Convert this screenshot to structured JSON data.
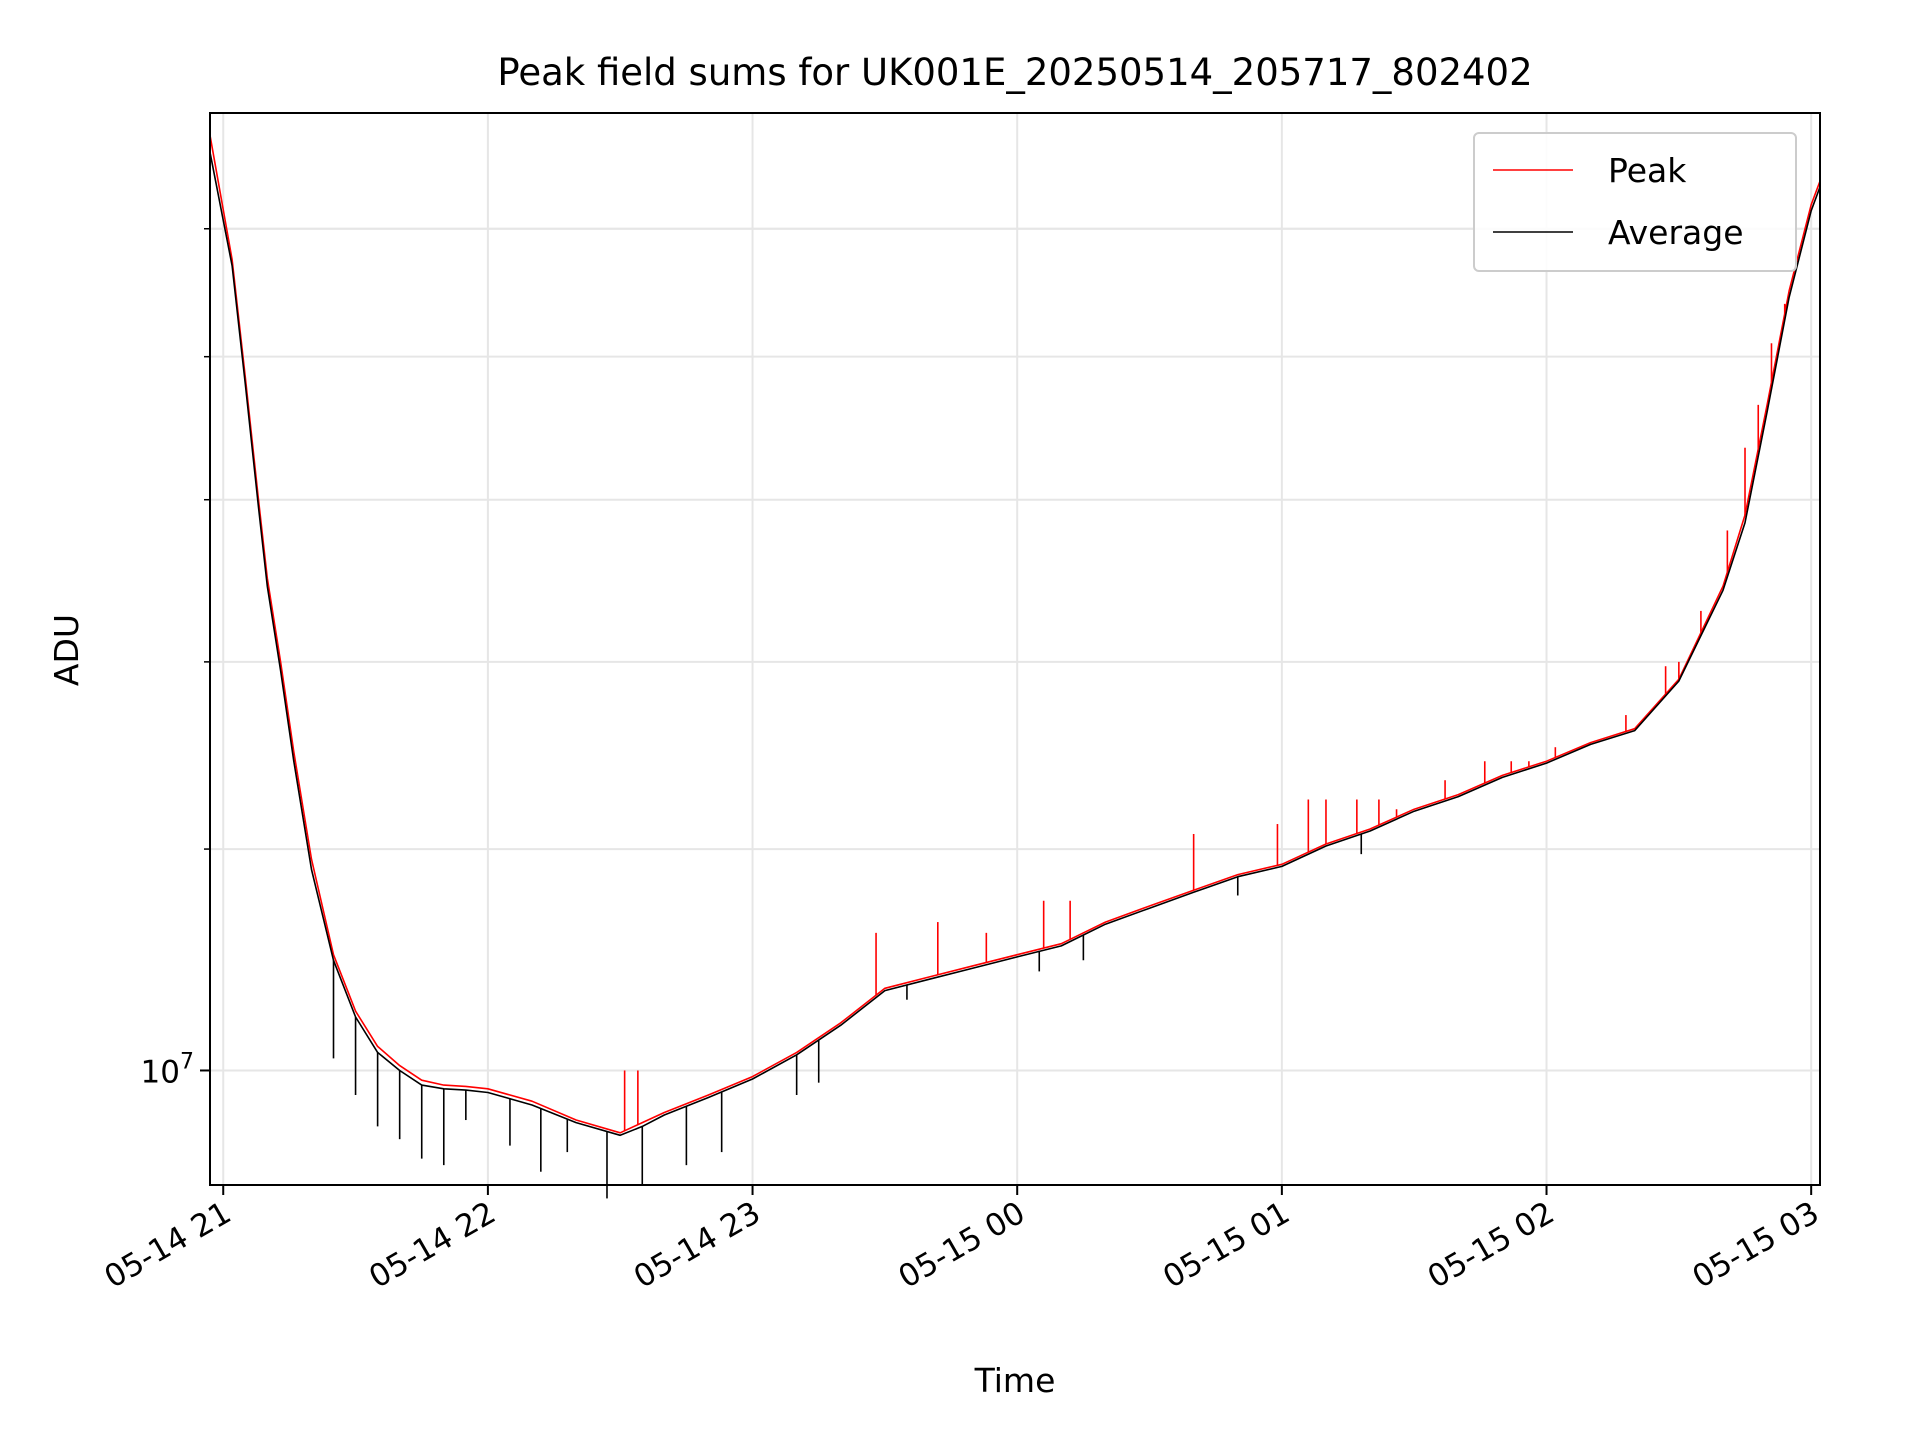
{
  "chart_data": {
    "type": "line",
    "title": "Peak field sums for UK001E_20250514_205717_802402",
    "xlabel": "Time",
    "ylabel": "ADU",
    "x_unit": "time",
    "y_scale": "log",
    "grid": true,
    "legend_position": "upper right",
    "xlim": [
      "2025-05-14 20:57",
      "2025-05-15 03:02"
    ],
    "ylim": [
      9100000,
      22000000
    ],
    "x_ticks": [
      {
        "t": "2025-05-14 21:00",
        "label": "05-14 21"
      },
      {
        "t": "2025-05-14 22:00",
        "label": "05-14 22"
      },
      {
        "t": "2025-05-14 23:00",
        "label": "05-14 23"
      },
      {
        "t": "2025-05-15 00:00",
        "label": "05-15 00"
      },
      {
        "t": "2025-05-15 01:00",
        "label": "05-15 01"
      },
      {
        "t": "2025-05-15 02:00",
        "label": "05-15 02"
      },
      {
        "t": "2025-05-15 03:00",
        "label": "05-15 03"
      }
    ],
    "y_major_ticks": [
      {
        "value": 10000000,
        "label_base": "10",
        "label_exp": "7"
      }
    ],
    "y_minor_ticks": [
      9000000,
      20000000,
      30000000
    ],
    "series": [
      {
        "name": "Peak",
        "color": "#ff0000",
        "x": [
          "2025-05-14 20:57",
          "2025-05-14 21:02",
          "2025-05-14 21:05",
          "2025-05-14 21:08",
          "2025-05-14 21:10",
          "2025-05-14 21:13",
          "2025-05-14 21:16",
          "2025-05-14 21:20",
          "2025-05-14 21:25",
          "2025-05-14 21:30",
          "2025-05-14 21:35",
          "2025-05-14 21:40",
          "2025-05-14 21:45",
          "2025-05-14 21:50",
          "2025-05-14 21:55",
          "2025-05-14 22:00",
          "2025-05-14 22:10",
          "2025-05-14 22:20",
          "2025-05-14 22:30",
          "2025-05-14 22:35",
          "2025-05-14 22:40",
          "2025-05-14 22:50",
          "2025-05-14 23:00",
          "2025-05-14 23:10",
          "2025-05-14 23:20",
          "2025-05-14 23:30",
          "2025-05-14 23:40",
          "2025-05-14 23:50",
          "2025-05-15 00:00",
          "2025-05-15 00:10",
          "2025-05-15 00:20",
          "2025-05-15 00:30",
          "2025-05-15 00:40",
          "2025-05-15 00:50",
          "2025-05-15 01:00",
          "2025-05-15 01:10",
          "2025-05-15 01:20",
          "2025-05-15 01:30",
          "2025-05-15 01:40",
          "2025-05-15 01:50",
          "2025-05-15 02:00",
          "2025-05-15 02:10",
          "2025-05-15 02:20",
          "2025-05-15 02:30",
          "2025-05-15 02:40",
          "2025-05-15 02:45",
          "2025-05-15 02:50",
          "2025-05-15 02:55",
          "2025-05-15 03:00",
          "2025-05-15 03:02"
        ],
        "values": [
          21600000,
          19500000,
          17700000,
          16000000,
          15000000,
          14000000,
          13000000,
          11900000,
          11000000,
          10500000,
          10200000,
          10040000,
          9920000,
          9880000,
          9870000,
          9850000,
          9750000,
          9600000,
          9500000,
          9580000,
          9660000,
          9800000,
          9950000,
          10150000,
          10400000,
          10700000,
          10800000,
          10900000,
          11000000,
          11100000,
          11300000,
          11450000,
          11600000,
          11750000,
          11850000,
          12050000,
          12200000,
          12400000,
          12550000,
          12750000,
          12900000,
          13100000,
          13250000,
          13800000,
          14900000,
          15800000,
          17300000,
          19000000,
          20400000,
          20800000
        ],
        "spikes": [
          {
            "t": "2025-05-14 22:31",
            "value": 10000000
          },
          {
            "t": "2025-05-14 22:34",
            "value": 10000000
          },
          {
            "t": "2025-05-14 23:28",
            "value": 11200000
          },
          {
            "t": "2025-05-14 23:42",
            "value": 11300000
          },
          {
            "t": "2025-05-14 23:53",
            "value": 11200000
          },
          {
            "t": "2025-05-15 00:06",
            "value": 11500000
          },
          {
            "t": "2025-05-15 00:12",
            "value": 11500000
          },
          {
            "t": "2025-05-15 00:40",
            "value": 12150000
          },
          {
            "t": "2025-05-15 00:59",
            "value": 12250000
          },
          {
            "t": "2025-05-15 01:06",
            "value": 12500000
          },
          {
            "t": "2025-05-15 01:10",
            "value": 12500000
          },
          {
            "t": "2025-05-15 01:17",
            "value": 12500000
          },
          {
            "t": "2025-05-15 01:22",
            "value": 12500000
          },
          {
            "t": "2025-05-15 01:26",
            "value": 12400000
          },
          {
            "t": "2025-05-15 01:37",
            "value": 12700000
          },
          {
            "t": "2025-05-15 01:46",
            "value": 12900000
          },
          {
            "t": "2025-05-15 01:52",
            "value": 12900000
          },
          {
            "t": "2025-05-15 01:56",
            "value": 12900000
          },
          {
            "t": "2025-05-15 02:02",
            "value": 13050000
          },
          {
            "t": "2025-05-15 02:08",
            "value": 13050000
          },
          {
            "t": "2025-05-15 02:18",
            "value": 13400000
          },
          {
            "t": "2025-05-15 02:27",
            "value": 13950000
          },
          {
            "t": "2025-05-15 02:30",
            "value": 14000000
          },
          {
            "t": "2025-05-15 02:35",
            "value": 14600000
          },
          {
            "t": "2025-05-15 02:41",
            "value": 15600000
          },
          {
            "t": "2025-05-15 02:45",
            "value": 16700000
          },
          {
            "t": "2025-05-15 02:48",
            "value": 17300000
          },
          {
            "t": "2025-05-15 02:51",
            "value": 18200000
          },
          {
            "t": "2025-05-15 02:54",
            "value": 18800000
          }
        ]
      },
      {
        "name": "Average",
        "color": "#000000",
        "x": [
          "2025-05-14 20:57",
          "2025-05-14 21:02",
          "2025-05-14 21:05",
          "2025-05-14 21:08",
          "2025-05-14 21:10",
          "2025-05-14 21:13",
          "2025-05-14 21:16",
          "2025-05-14 21:20",
          "2025-05-14 21:25",
          "2025-05-14 21:30",
          "2025-05-14 21:35",
          "2025-05-14 21:40",
          "2025-05-14 21:45",
          "2025-05-14 21:50",
          "2025-05-14 21:55",
          "2025-05-14 22:00",
          "2025-05-14 22:10",
          "2025-05-14 22:20",
          "2025-05-14 22:30",
          "2025-05-14 22:35",
          "2025-05-14 22:40",
          "2025-05-14 22:50",
          "2025-05-14 23:00",
          "2025-05-14 23:10",
          "2025-05-14 23:20",
          "2025-05-14 23:30",
          "2025-05-14 23:40",
          "2025-05-14 23:50",
          "2025-05-15 00:00",
          "2025-05-15 00:10",
          "2025-05-15 00:20",
          "2025-05-15 00:30",
          "2025-05-15 00:40",
          "2025-05-15 00:50",
          "2025-05-15 01:00",
          "2025-05-15 01:10",
          "2025-05-15 01:20",
          "2025-05-15 01:30",
          "2025-05-15 01:40",
          "2025-05-15 01:50",
          "2025-05-15 02:00",
          "2025-05-15 02:10",
          "2025-05-15 02:20",
          "2025-05-15 02:30",
          "2025-05-15 02:40",
          "2025-05-15 02:45",
          "2025-05-15 02:50",
          "2025-05-15 02:55",
          "2025-05-15 03:00",
          "2025-05-15 03:02"
        ],
        "values": [
          21300000,
          19400000,
          17600000,
          15900000,
          14900000,
          13900000,
          12900000,
          11800000,
          10950000,
          10450000,
          10150000,
          10000000,
          9880000,
          9850000,
          9840000,
          9820000,
          9720000,
          9580000,
          9480000,
          9550000,
          9640000,
          9780000,
          9930000,
          10130000,
          10380000,
          10680000,
          10780000,
          10880000,
          10980000,
          11080000,
          11280000,
          11430000,
          11580000,
          11730000,
          11830000,
          12030000,
          12180000,
          12380000,
          12530000,
          12730000,
          12880000,
          13080000,
          13230000,
          13780000,
          14850000,
          15700000,
          17200000,
          18900000,
          20300000,
          20700000
        ],
        "dips": [
          {
            "t": "2025-05-14 21:25",
            "value": 10100000
          },
          {
            "t": "2025-05-14 21:30",
            "value": 9800000
          },
          {
            "t": "2025-05-14 21:35",
            "value": 9550000
          },
          {
            "t": "2025-05-14 21:40",
            "value": 9450000
          },
          {
            "t": "2025-05-14 21:45",
            "value": 9300000
          },
          {
            "t": "2025-05-14 21:50",
            "value": 9250000
          },
          {
            "t": "2025-05-14 21:55",
            "value": 9600000
          },
          {
            "t": "2025-05-14 22:05",
            "value": 9400000
          },
          {
            "t": "2025-05-14 22:12",
            "value": 9200000
          },
          {
            "t": "2025-05-14 22:18",
            "value": 9350000
          },
          {
            "t": "2025-05-14 22:27",
            "value": 9000000
          },
          {
            "t": "2025-05-14 22:35",
            "value": 9100000
          },
          {
            "t": "2025-05-14 22:45",
            "value": 9250000
          },
          {
            "t": "2025-05-14 22:53",
            "value": 9350000
          },
          {
            "t": "2025-05-14 23:10",
            "value": 9800000
          },
          {
            "t": "2025-05-14 23:15",
            "value": 9900000
          },
          {
            "t": "2025-05-14 23:35",
            "value": 10600000
          },
          {
            "t": "2025-05-15 00:05",
            "value": 10850000
          },
          {
            "t": "2025-05-15 00:15",
            "value": 10950000
          },
          {
            "t": "2025-05-15 00:50",
            "value": 11550000
          },
          {
            "t": "2025-05-15 01:18",
            "value": 11950000
          }
        ]
      }
    ]
  }
}
